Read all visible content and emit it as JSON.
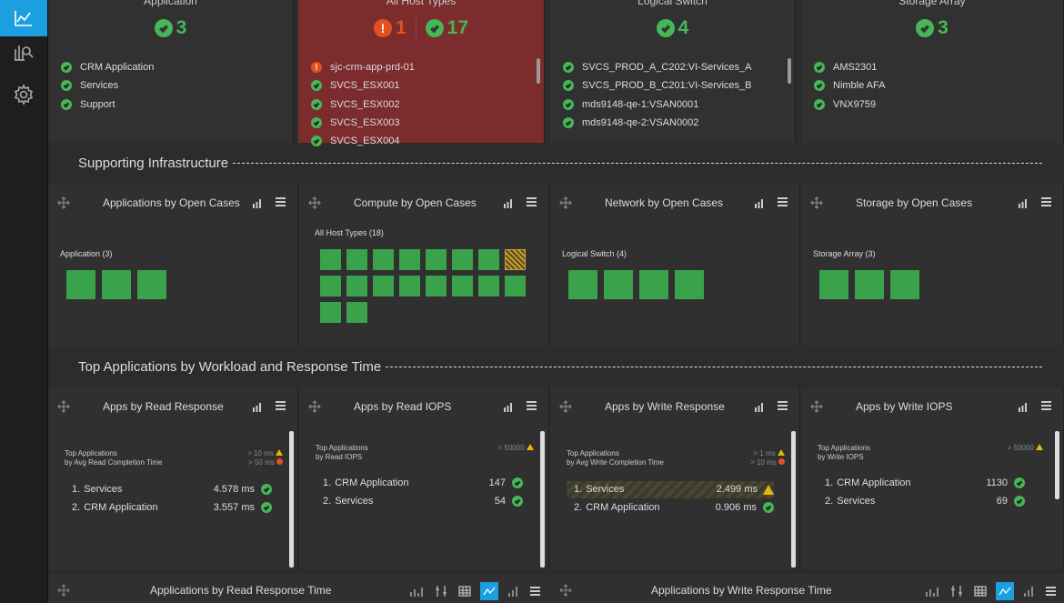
{
  "nav": {
    "items": [
      "dashboard-icon",
      "analytics-icon",
      "settings-icon"
    ]
  },
  "top_cards": [
    {
      "title": "Application",
      "ok": "3",
      "items": [
        {
          "status": "ok",
          "label": "CRM Application"
        },
        {
          "status": "ok",
          "label": "Services"
        },
        {
          "status": "ok",
          "label": "Support"
        }
      ]
    },
    {
      "title": "All Host Types",
      "err": "1",
      "ok": "17",
      "items": [
        {
          "status": "err",
          "label": "sjc-crm-app-prd-01"
        },
        {
          "status": "ok",
          "label": "SVCS_ESX001"
        },
        {
          "status": "ok",
          "label": "SVCS_ESX002"
        },
        {
          "status": "ok",
          "label": "SVCS_ESX003"
        },
        {
          "status": "ok",
          "label": "SVCS_ESX004"
        }
      ]
    },
    {
      "title": "Logical Switch",
      "ok": "4",
      "items": [
        {
          "status": "ok",
          "label": "SVCS_PROD_A_C202:VI-Services_A"
        },
        {
          "status": "ok",
          "label": "SVCS_PROD_B_C201:VI-Services_B"
        },
        {
          "status": "ok",
          "label": "mds9148-qe-1:VSAN0001"
        },
        {
          "status": "ok",
          "label": "mds9148-qe-2:VSAN0002"
        }
      ]
    },
    {
      "title": "Storage Array",
      "ok": "3",
      "items": [
        {
          "status": "ok",
          "label": "AMS2301"
        },
        {
          "status": "ok",
          "label": "Nimble AFA"
        },
        {
          "status": "ok",
          "label": "VNX9759"
        }
      ]
    }
  ],
  "sections": {
    "supporting": "Supporting Infrastructure",
    "top_apps": "Top Applications by Workload and Response Time"
  },
  "infra_panels": [
    {
      "title": "Applications by Open Cases",
      "group": "Application (3)",
      "ok_tiles": 3,
      "warn_tiles": 0
    },
    {
      "title": "Compute by Open Cases",
      "group": "All Host Types (18)",
      "ok_tiles": 17,
      "warn_tiles": 1
    },
    {
      "title": "Network by Open Cases",
      "group": "Logical Switch (4)",
      "ok_tiles": 4,
      "warn_tiles": 0
    },
    {
      "title": "Storage by Open Cases",
      "group": "Storage Array (3)",
      "ok_tiles": 3,
      "warn_tiles": 0
    }
  ],
  "app_panels": [
    {
      "title": "Apps by Read Response",
      "sub1": "Top Applications",
      "sub2": "by Avg Read Completion Time",
      "thr1": "> 10 ms",
      "thr2": "> 50 ms",
      "rows": [
        {
          "rank": "1.",
          "name": "Services",
          "value": "4.578 ms"
        },
        {
          "rank": "2.",
          "name": "CRM Application",
          "value": "3.557 ms"
        }
      ]
    },
    {
      "title": "Apps by Read IOPS",
      "sub1": "Top Applications",
      "sub2": "by Read IOPS",
      "thr1": "> 50000",
      "thr2": "",
      "rows": [
        {
          "rank": "1.",
          "name": "CRM Application",
          "value": "147"
        },
        {
          "rank": "2.",
          "name": "Services",
          "value": "54"
        }
      ]
    },
    {
      "title": "Apps by Write Response",
      "sub1": "Top Applications",
      "sub2": "by Avg Write Completion Time",
      "thr1": "> 1 ms",
      "thr2": "> 10 ms",
      "rows": [
        {
          "rank": "1.",
          "name": "Services",
          "value": "2.499 ms"
        },
        {
          "rank": "2.",
          "name": "CRM Application",
          "value": "0.906 ms"
        }
      ]
    },
    {
      "title": "Apps by Write IOPS",
      "sub1": "Top Applications",
      "sub2": "by Write IOPS",
      "thr1": "> 50000",
      "thr2": "",
      "rows": [
        {
          "rank": "1.",
          "name": "CRM Application",
          "value": "1130"
        },
        {
          "rank": "2.",
          "name": "Services",
          "value": "69"
        }
      ]
    }
  ],
  "bottom_panels": [
    {
      "title": "Applications by Read Response Time"
    },
    {
      "title": "Applications by Write Response Time"
    }
  ],
  "colors": {
    "ok": "#46b656",
    "error": "#e35020",
    "warning": "#e6b800",
    "accent": "#1c9fe0",
    "alert_card": "#7c2c2c"
  }
}
